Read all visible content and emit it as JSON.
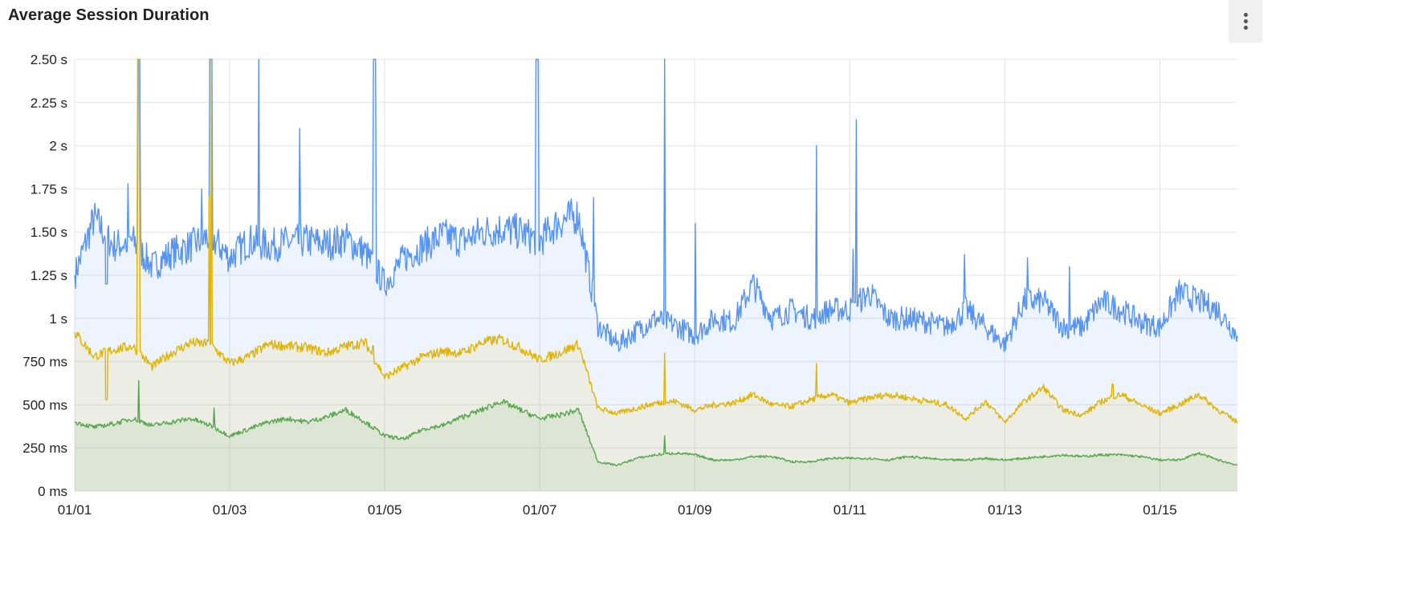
{
  "panel": {
    "title": "Average Session Duration",
    "menu_icon": "kebab-vertical-icon"
  },
  "chart_data": {
    "type": "area",
    "title": "Average Session Duration",
    "xlabel": "",
    "ylabel": "",
    "unit": "ms",
    "ylim": [
      0,
      2500
    ],
    "xlim": [
      "01/01 00:00",
      "01/16 00:00"
    ],
    "grid": true,
    "legend": "none",
    "y_ticks": [
      {
        "value": 0,
        "label": "0 ms"
      },
      {
        "value": 250,
        "label": "250 ms"
      },
      {
        "value": 500,
        "label": "500 ms"
      },
      {
        "value": 750,
        "label": "750 ms"
      },
      {
        "value": 1000,
        "label": "1 s"
      },
      {
        "value": 1250,
        "label": "1.25 s"
      },
      {
        "value": 1500,
        "label": "1.50 s"
      },
      {
        "value": 1750,
        "label": "1.75 s"
      },
      {
        "value": 2000,
        "label": "2 s"
      },
      {
        "value": 2250,
        "label": "2.25 s"
      },
      {
        "value": 2500,
        "label": "2.50 s"
      }
    ],
    "x_ticks": [
      {
        "value": "01/01 00:00",
        "label": "01/01"
      },
      {
        "value": "01/03 00:00",
        "label": "01/03"
      },
      {
        "value": "01/05 00:00",
        "label": "01/05"
      },
      {
        "value": "01/07 00:00",
        "label": "01/07"
      },
      {
        "value": "01/09 00:00",
        "label": "01/09"
      },
      {
        "value": "01/11 00:00",
        "label": "01/11"
      },
      {
        "value": "01/13 00:00",
        "label": "01/13"
      },
      {
        "value": "01/15 00:00",
        "label": "01/15"
      }
    ],
    "x_step_hours": 6,
    "x_start": "01/01 00:00",
    "series": [
      {
        "color": "#5794F2",
        "values": [
          1250,
          1580,
          1420,
          1450,
          1300,
          1380,
          1420,
          1480,
          1350,
          1450,
          1420,
          1440,
          1450,
          1430,
          1460,
          1380,
          1200,
          1350,
          1420,
          1480,
          1450,
          1500,
          1520,
          1500,
          1450,
          1560,
          1600,
          960,
          850,
          930,
          1000,
          960,
          900,
          1000,
          980,
          1200,
          1000,
          1050,
          1000,
          1050,
          1050,
          1150,
          1000,
          1000,
          980,
          950,
          1050,
          950,
          850,
          1100,
          1100,
          950,
          950,
          1100,
          1050,
          980,
          950,
          1150,
          1100,
          1050,
          900
        ],
        "spikes": [
          [
            "01/01 09:50",
            1200
          ],
          [
            "01/01 16:30",
            1780
          ],
          [
            "01/01 19:40",
            2500
          ],
          [
            "01/01 20:10",
            2500
          ],
          [
            "01/02 15:20",
            1750
          ],
          [
            "01/02 17:50",
            2500
          ],
          [
            "01/02 18:30",
            2500
          ],
          [
            "01/03 09:00",
            2500
          ],
          [
            "01/03 21:40",
            2100
          ],
          [
            "01/04 20:30",
            2500
          ],
          [
            "01/04 21:10",
            2500
          ],
          [
            "01/06 22:50",
            2500
          ],
          [
            "01/06 23:30",
            2500
          ],
          [
            "01/07 16:40",
            1700
          ],
          [
            "01/08 14:40",
            2500
          ],
          [
            "01/09 00:10",
            1550
          ],
          [
            "01/10 13:40",
            2000
          ],
          [
            "01/11 02:00",
            2150
          ],
          [
            "01/11 01:00",
            1400
          ],
          [
            "01/12 11:30",
            1370
          ],
          [
            "01/13 07:00",
            1350
          ],
          [
            "01/13 20:00",
            1300
          ]
        ]
      },
      {
        "color": "#E0B400",
        "values": [
          920,
          780,
          820,
          840,
          720,
          800,
          860,
          850,
          740,
          780,
          850,
          840,
          830,
          800,
          840,
          860,
          660,
          720,
          780,
          810,
          800,
          860,
          880,
          830,
          760,
          800,
          850,
          480,
          450,
          480,
          510,
          520,
          470,
          500,
          510,
          560,
          500,
          490,
          530,
          560,
          510,
          540,
          560,
          540,
          520,
          500,
          420,
          520,
          400,
          520,
          600,
          470,
          440,
          520,
          560,
          500,
          450,
          500,
          560,
          470,
          400
        ],
        "spikes": [
          [
            "01/01 09:50",
            530
          ],
          [
            "01/01 19:30",
            2500
          ],
          [
            "01/01 20:00",
            2500
          ],
          [
            "01/02 17:40",
            1700
          ],
          [
            "01/02 18:20",
            2500
          ],
          [
            "01/04 20:30",
            840
          ],
          [
            "01/08 14:40",
            800
          ],
          [
            "01/10 13:40",
            740
          ],
          [
            "01/14 09:30",
            620
          ]
        ]
      },
      {
        "color": "#56A64B",
        "values": [
          400,
          370,
          390,
          420,
          380,
          400,
          420,
          380,
          320,
          360,
          400,
          420,
          400,
          430,
          470,
          400,
          320,
          300,
          360,
          380,
          430,
          470,
          520,
          470,
          420,
          440,
          470,
          170,
          150,
          190,
          210,
          220,
          210,
          180,
          180,
          200,
          200,
          170,
          170,
          190,
          190,
          190,
          180,
          200,
          190,
          180,
          180,
          190,
          180,
          190,
          200,
          210,
          200,
          210,
          210,
          200,
          180,
          180,
          220,
          180,
          150
        ],
        "spikes": [
          [
            "01/01 19:50",
            640
          ],
          [
            "01/02 19:10",
            480
          ],
          [
            "01/08 14:40",
            320
          ]
        ]
      }
    ]
  }
}
